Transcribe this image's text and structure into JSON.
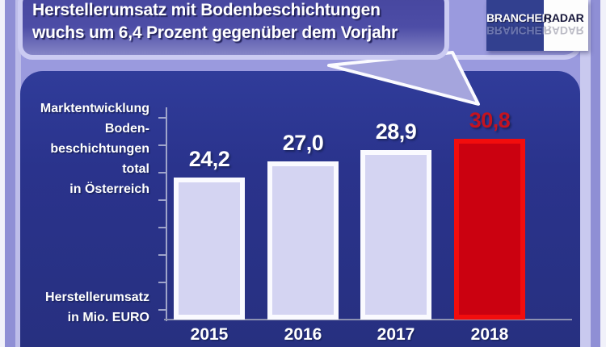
{
  "headline": {
    "line1": "Herstellerumsatz mit Bodenbeschichtungen",
    "line2": "wuchs um 6,4 Prozent gegenüber dem Vorjahr"
  },
  "logo": {
    "text_left": "BRANCHEN",
    "text_right": "RADAR"
  },
  "side_label": {
    "lines": [
      "Marktentwicklung",
      "Boden-",
      "beschichtungen",
      "total",
      "in Österreich"
    ]
  },
  "unit_label": {
    "lines": [
      "Herstellerumsatz",
      "in Mio. EURO"
    ]
  },
  "chart_data": {
    "type": "bar",
    "title": "Marktentwicklung Bodenbeschichtungen total in Österreich",
    "ylabel": "Herstellerumsatz in Mio. EURO",
    "categories": [
      "2015",
      "2016",
      "2017",
      "2018"
    ],
    "values": [
      24.2,
      27.0,
      28.9,
      30.8
    ],
    "value_labels": [
      "24,2",
      "27,0",
      "28,9",
      "30,8"
    ],
    "highlight_index": 3,
    "ylim": [
      0,
      36
    ],
    "grid": false,
    "legend": false,
    "colors": {
      "bar_fill": "#d4d4f2",
      "bar_border": "#fafaff",
      "highlight_fill": "#cb0110",
      "highlight_border": "#f20d0d",
      "value_label": "#ffffff",
      "highlight_value_label": "#c31320",
      "axis": "#b4b8d6"
    }
  },
  "colors": {
    "background": "#9a9ade",
    "panel": "#2a338c",
    "bubble_fill": "#4a4aa4",
    "bubble_border": "#cbcbf2",
    "logo_blue": "#32408f",
    "text": "#ffffff"
  }
}
